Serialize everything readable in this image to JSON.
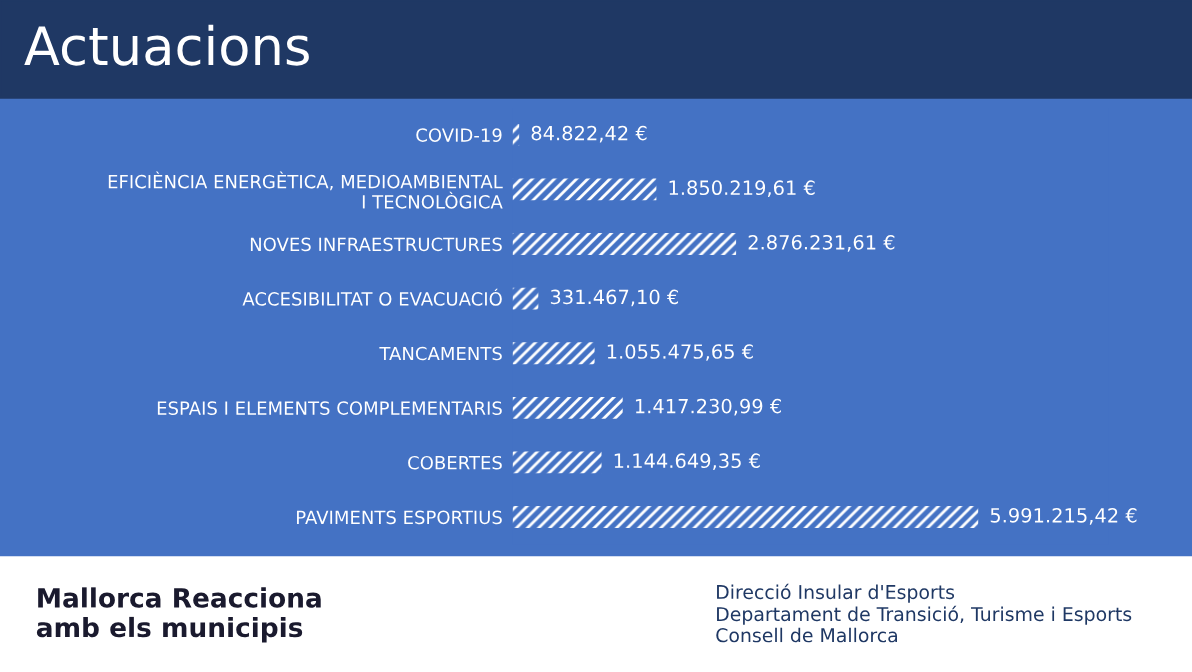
{
  "chart_data": {
    "type": "bar",
    "orientation": "horizontal",
    "title": "Actuacions",
    "categories": [
      "COVID-19",
      "EFICIÈNCIA ENERGÈTICA, MEDIOAMBIENTAL\nI TECNOLÒGICA",
      "NOVES INFRAESTRUCTURES",
      "ACCESIBILITAT O EVACUACIÓ",
      "TANCAMENTS",
      "ESPAIS I ELEMENTS COMPLEMENTARIS",
      "COBERTES",
      "PAVIMENTS ESPORTIUS"
    ],
    "values": [
      84822.42,
      1850219.61,
      2876231.61,
      331467.1,
      1055475.65,
      1417230.99,
      1144649.35,
      5991215.42
    ],
    "value_labels": [
      "84.822,42 €",
      "1.850.219,61 €",
      "2.876.231,61 €",
      "331.467,10 €",
      "1.055.475,65 €",
      "1.417.230,99 €",
      "1.144.649,35 €",
      "5.991.215,42 €"
    ],
    "color": "#ffffff",
    "annotations": [
      "Mallorca Reacciona\namb els municipis",
      "Direcció Insular d'Esports\nDepartament de Transició, Turisme i Esports\nConsell de Mallorca"
    ]
  }
}
